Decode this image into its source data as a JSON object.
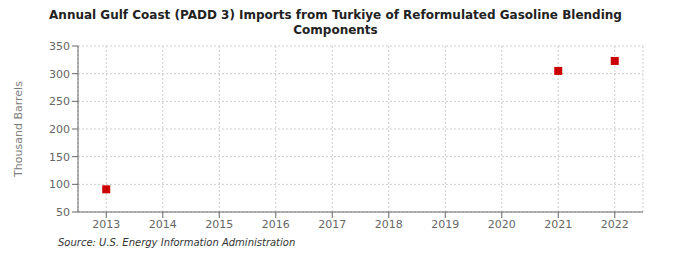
{
  "chart_data": {
    "type": "scatter",
    "title": "Annual Gulf Coast (PADD 3) Imports from Turkiye of Reformulated Gasoline Blending\nComponents",
    "ylabel": "Thousand Barrels",
    "annotations": [
      "Source: U.S. Energy Information Administration"
    ],
    "x": [
      2013,
      2014,
      2015,
      2016,
      2017,
      2018,
      2019,
      2020,
      2021,
      2022
    ],
    "values": [
      91,
      null,
      null,
      null,
      null,
      null,
      null,
      null,
      305,
      323
    ],
    "color": "#cc0000",
    "marker": "square",
    "xlim": [
      2012.5,
      2022.5
    ],
    "xticks": [
      2013,
      2014,
      2015,
      2016,
      2017,
      2018,
      2019,
      2020,
      2021,
      2022
    ],
    "ylim": [
      50,
      350
    ],
    "yticks": [
      50,
      100,
      150,
      200,
      250,
      300,
      350
    ],
    "grid": true
  }
}
